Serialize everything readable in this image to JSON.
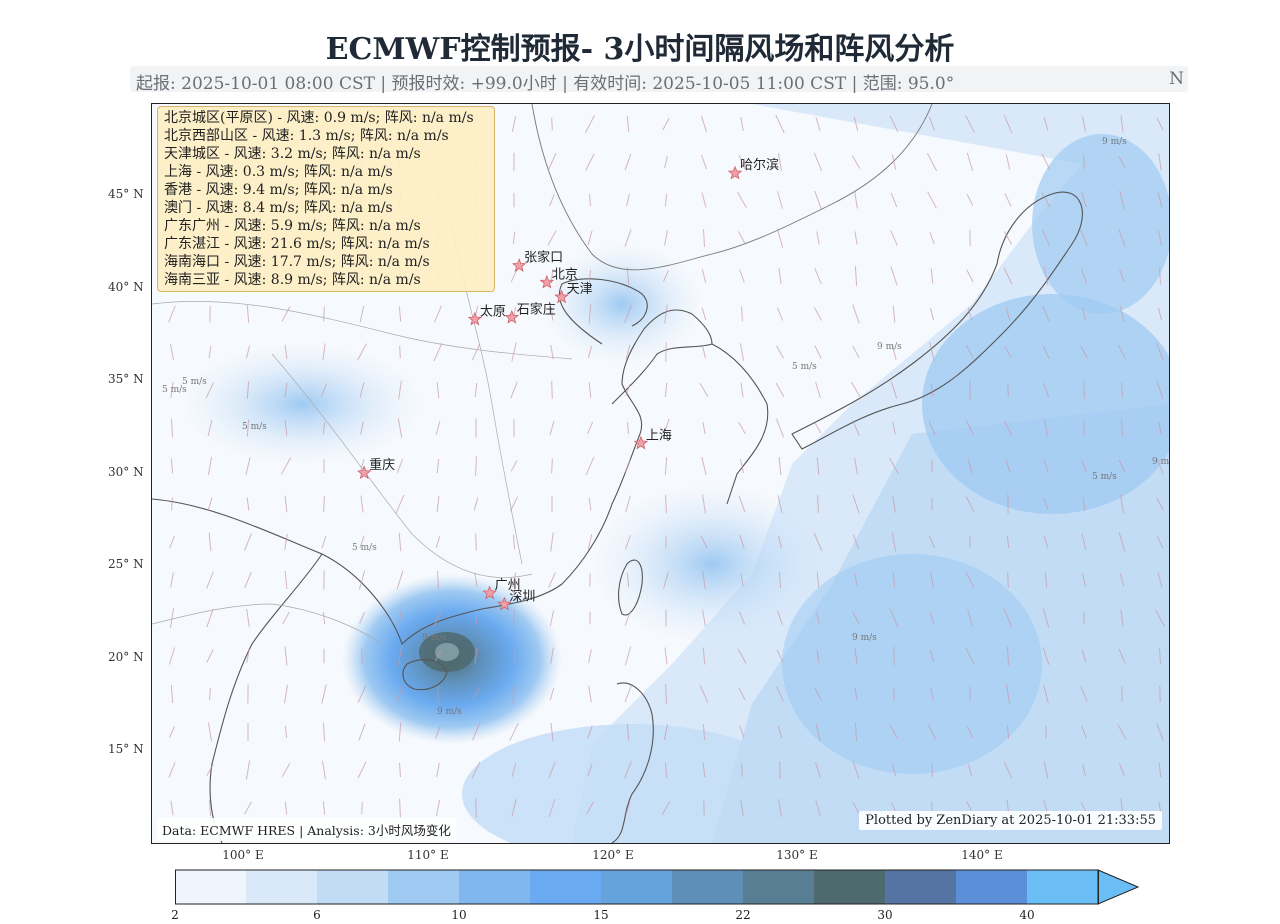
{
  "title": "ECMWF控制预报- 3小时间隔风场和阵风分析",
  "subtitle": "起报: 2025-10-01 08:00 CST | 预报时效: +99.0小时 | 有效时间: 2025-10-05 11:00 CST | 范围: 95.0°",
  "subtitle_suffix": "N",
  "axes": {
    "lat_ticks": [
      "45° N",
      "40° N",
      "35° N",
      "30° N",
      "25° N",
      "20° N",
      "15° N"
    ],
    "lon_ticks": [
      "100° E",
      "110° E",
      "120° E",
      "130° E",
      "140° E"
    ]
  },
  "station_legend": [
    "北京城区(平原区) - 风速: 0.9 m/s; 阵风: n/a m/s",
    "北京西部山区 - 风速: 1.3 m/s; 阵风: n/a m/s",
    "天津城区 - 风速: 3.2 m/s; 阵风: n/a m/s",
    "上海 - 风速: 0.3 m/s; 阵风: n/a m/s",
    "香港 - 风速: 9.4 m/s; 阵风: n/a m/s",
    "澳门 - 风速: 8.4 m/s; 阵风: n/a m/s",
    "广东广州 - 风速: 5.9 m/s; 阵风: n/a m/s",
    "广东湛江 - 风速: 21.6 m/s; 阵风: n/a m/s",
    "海南海口 - 风速: 17.7 m/s; 阵风: n/a m/s",
    "海南三亚 - 风速: 8.9 m/s; 阵风: n/a m/s"
  ],
  "cities": [
    {
      "name": "哈尔滨",
      "lon": 126.6,
      "lat": 45.8
    },
    {
      "name": "张家口",
      "lon": 114.9,
      "lat": 40.8
    },
    {
      "name": "北京",
      "lon": 116.4,
      "lat": 39.9
    },
    {
      "name": "天津",
      "lon": 117.2,
      "lat": 39.1
    },
    {
      "name": "太原",
      "lon": 112.5,
      "lat": 37.9
    },
    {
      "name": "石家庄",
      "lon": 114.5,
      "lat": 38.0
    },
    {
      "name": "上海",
      "lon": 121.5,
      "lat": 31.2
    },
    {
      "name": "重庆",
      "lon": 106.5,
      "lat": 29.6
    },
    {
      "name": "广州",
      "lon": 113.3,
      "lat": 23.1
    },
    {
      "name": "深圳",
      "lon": 114.1,
      "lat": 22.5
    }
  ],
  "contour_labels": [
    "5 m/s",
    "9 m/s"
  ],
  "colorbar": {
    "ticks": [
      "2",
      "6",
      "10",
      "15",
      "22",
      "30",
      "40"
    ],
    "colors": [
      "#eef5fd",
      "#d9e9fa",
      "#c2dcf6",
      "#9fcaf2",
      "#7fb7ee",
      "#6aaaf0",
      "#65a3dc",
      "#5e8fb8",
      "#587e94",
      "#4f6a6e",
      "#5574a3",
      "#5b8fd8",
      "#6bbdf5"
    ]
  },
  "footer_left": "Data: ECMWF HRES | Analysis: 3小时风场变化",
  "footer_right": "Plotted by ZenDiary at 2025-10-01 21:33:55"
}
